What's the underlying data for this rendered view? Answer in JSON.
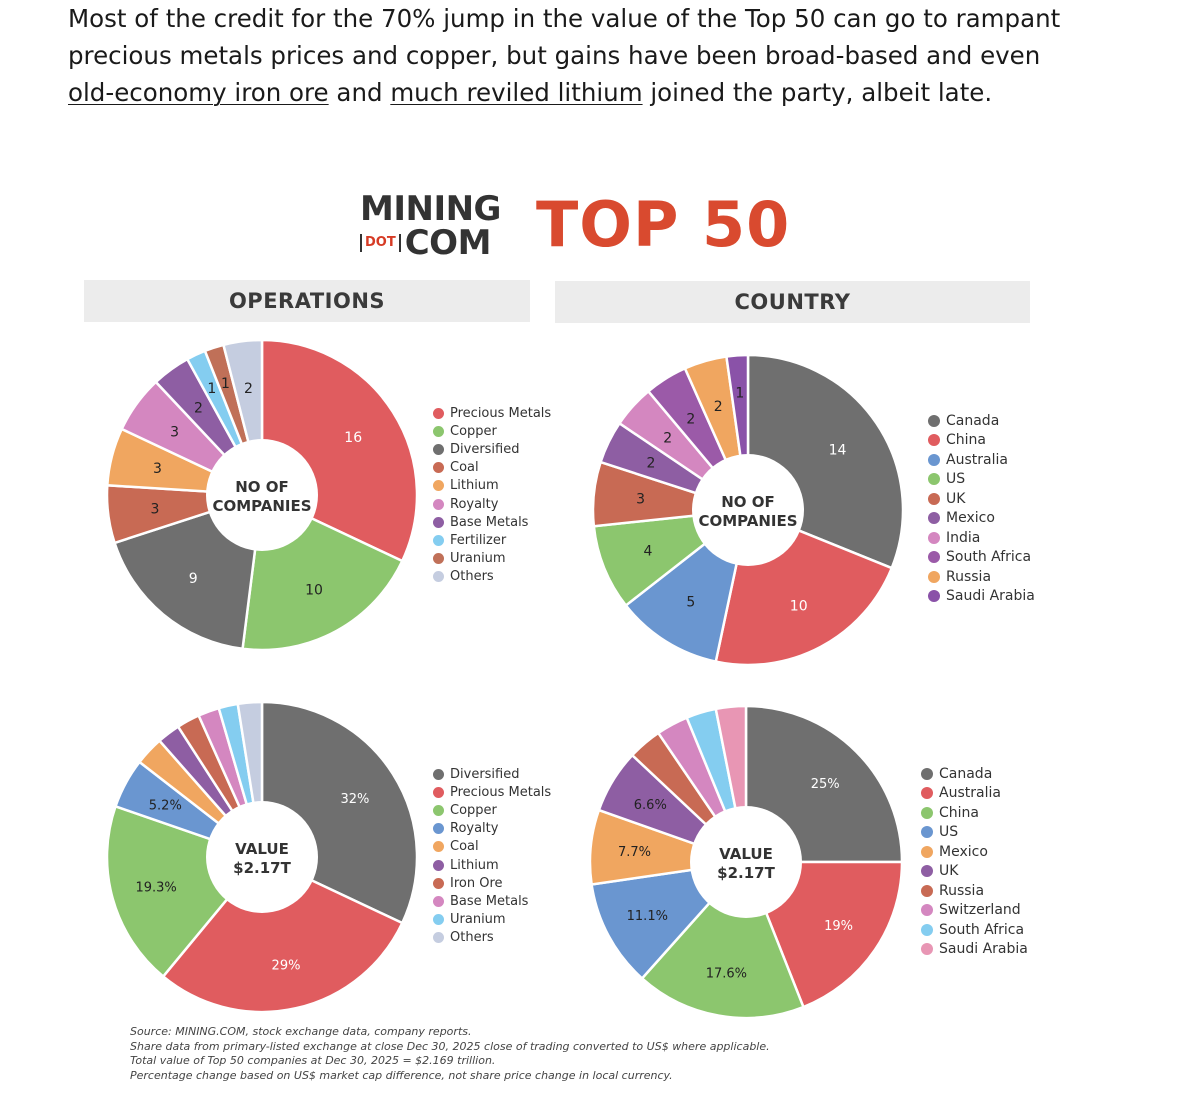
{
  "article": {
    "text_1": "Most of the credit for the 70% jump in the value of the Top 50 can go to rampant precious metals prices and copper, but gains have been broad-based and even ",
    "link_1": "old-economy iron ore",
    "text_2": " and ",
    "link_2": "much reviled lithium",
    "text_3": " joined the party, albeit late."
  },
  "logo": {
    "line1": "MINING",
    "dot": "DOT",
    "line2": "COM",
    "title": "TOP 50",
    "title_color": "#d94a2f"
  },
  "headers": {
    "operations": "OPERATIONS",
    "country": "COUNTRY"
  },
  "chart_data": [
    {
      "type": "pie",
      "id": "ops-count",
      "section": "OPERATIONS",
      "center_label": [
        "NO OF",
        "COMPANIES"
      ],
      "categories": [
        "Precious Metals",
        "Copper",
        "Diversified",
        "Coal",
        "Lithium",
        "Royalty",
        "Base Metals",
        "Fertilizer",
        "Uranium",
        "Others"
      ],
      "values": [
        16,
        10,
        9,
        3,
        3,
        3,
        2,
        1,
        1,
        2
      ],
      "labels": [
        "16",
        "10",
        "9",
        "3",
        "3",
        "3",
        "2",
        "1",
        "1",
        "2"
      ],
      "colors": [
        "#e05c5f",
        "#8cc66e",
        "#6f6f6f",
        "#c86a54",
        "#f0a660",
        "#d487c0",
        "#8e5ea3",
        "#84cdf0",
        "#c07058",
        "#c5cde0"
      ]
    },
    {
      "type": "pie",
      "id": "country-count",
      "section": "COUNTRY",
      "center_label": [
        "NO OF",
        "COMPANIES"
      ],
      "categories": [
        "Canada",
        "China",
        "Australia",
        "US",
        "UK",
        "Mexico",
        "India",
        "South Africa",
        "Russia",
        "Saudi Arabia"
      ],
      "values": [
        14,
        10,
        5,
        4,
        3,
        2,
        2,
        2,
        2,
        1
      ],
      "labels": [
        "14",
        "10",
        "5",
        "4",
        "3",
        "2",
        "2",
        "2",
        "2",
        "1"
      ],
      "colors": [
        "#6f6f6f",
        "#e05c5f",
        "#6a96d0",
        "#8cc66e",
        "#c86a54",
        "#8e5ea3",
        "#d487c0",
        "#9b5aa8",
        "#f0a660",
        "#8a52a8"
      ]
    },
    {
      "type": "pie",
      "id": "ops-value",
      "section": "OPERATIONS",
      "center_label": [
        "VALUE",
        "$2.17T"
      ],
      "categories": [
        "Diversified",
        "Precious Metals",
        "Copper",
        "Royalty",
        "Coal",
        "Lithium",
        "Iron Ore",
        "Base Metals",
        "Uranium",
        "Others"
      ],
      "values": [
        32,
        29,
        19.3,
        5.2,
        3.0,
        2.4,
        2.4,
        2.2,
        2.0,
        2.5
      ],
      "labels": [
        "32%",
        "29%",
        "19.3%",
        "5.2%",
        "",
        "",
        "",
        "",
        "",
        ""
      ],
      "colors": [
        "#6f6f6f",
        "#e05c5f",
        "#8cc66e",
        "#6a96d0",
        "#f0a660",
        "#8e5ea3",
        "#c86a54",
        "#d487c0",
        "#84cdf0",
        "#c5cde0"
      ]
    },
    {
      "type": "pie",
      "id": "country-value",
      "section": "COUNTRY",
      "center_label": [
        "VALUE",
        "$2.17T"
      ],
      "categories": [
        "Canada",
        "Australia",
        "China",
        "US",
        "Mexico",
        "UK",
        "Russia",
        "Switzerland",
        "South Africa",
        "Saudi Arabia"
      ],
      "values": [
        25,
        19,
        17.6,
        11.1,
        7.7,
        6.6,
        3.5,
        3.3,
        3.1,
        3.1
      ],
      "labels": [
        "25%",
        "19%",
        "17.6%",
        "11.1%",
        "7.7%",
        "6.6%",
        "",
        "",
        "",
        ""
      ],
      "colors": [
        "#6f6f6f",
        "#e05c5f",
        "#8cc66e",
        "#6a96d0",
        "#f0a660",
        "#8e5ea3",
        "#c86a54",
        "#d487c0",
        "#84cdf0",
        "#e896b4"
      ]
    }
  ],
  "notes": [
    "Source: MINING.COM, stock exchange data, company reports.",
    "Share data from primary-listed exchange at close Dec 30, 2025 close of trading converted to US$ where applicable.",
    "Total value of Top 50 companies at Dec 30, 2025 = $2.169 trillion.",
    "Percentage change based on US$ market cap difference, not share price change in local currency."
  ]
}
